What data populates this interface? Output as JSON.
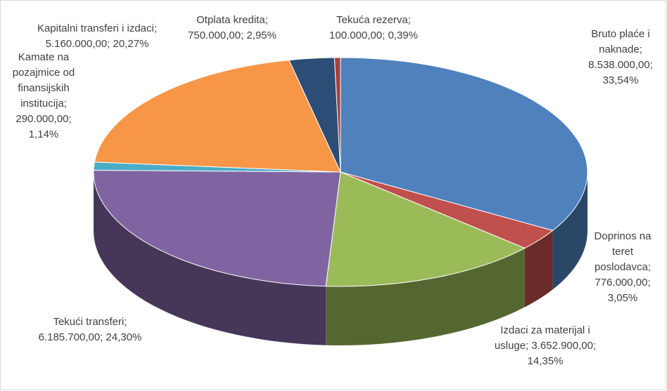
{
  "chart_data": {
    "type": "pie",
    "label_separator": "; ",
    "categories": [
      "Bruto plaće i naknade",
      "Doprinos na teret poslodavca",
      "Izdaci za materijal i usluge",
      "Tekući transferi",
      "Kamate na pozajmice od finansijskih institucija",
      "Kapitalni transferi i izdaci",
      "Otplata kredita",
      "Tekuća rezerva"
    ],
    "values": [
      8538000,
      776000,
      3652900,
      6185700,
      290000,
      5160000,
      750000,
      100000
    ],
    "value_labels": [
      "8.538.000,00",
      "776.000,00",
      "3.652.900,00",
      "6.185.700,00",
      "290.000,00",
      "5.160.000,00",
      "750.000,00",
      "100.000,00"
    ],
    "percentages": [
      33.54,
      3.05,
      14.35,
      24.3,
      1.14,
      20.27,
      2.95,
      0.39
    ],
    "percentage_labels": [
      "33,54%",
      "3,05%",
      "14,35%",
      "24,30%",
      "1,14%",
      "20,27%",
      "2,95%",
      "0,39%"
    ],
    "colors": [
      "#4f81bd",
      "#c0504d",
      "#9bbb59",
      "#8064a2",
      "#4bacc6",
      "#f79646",
      "#2c4d75",
      "#a5413e"
    ]
  }
}
